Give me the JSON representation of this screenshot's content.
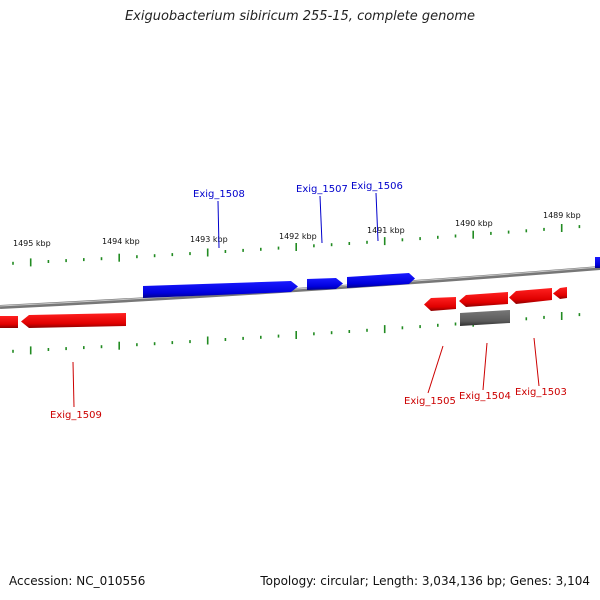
{
  "title": "Exiguobacterium sibiricum 255-15, complete genome",
  "footer": {
    "accession_label": "Accession:",
    "accession": "NC_010556",
    "topology_label": "Topology:",
    "topology": "circular",
    "length_label": "Length:",
    "length": "3,034,136 bp",
    "genes_label": "Genes:",
    "genes": "3,104"
  },
  "colors": {
    "forward_strand": "#0000ee",
    "reverse_strand": "#ee0000",
    "other_feature": "#666666",
    "ticks": "#228b22",
    "backbone": "#888888"
  },
  "ticks_unit": "kbp",
  "position_labels": [
    "1495 kbp",
    "1494 kbp",
    "1493 kbp",
    "1492 kbp",
    "1491 kbp",
    "1490 kbp",
    "1489 kbp"
  ],
  "genes": {
    "forward": [
      "Exig_1508",
      "Exig_1507",
      "Exig_1506"
    ],
    "reverse": [
      "Exig_1509",
      "Exig_1505",
      "Exig_1504",
      "Exig_1503"
    ]
  }
}
